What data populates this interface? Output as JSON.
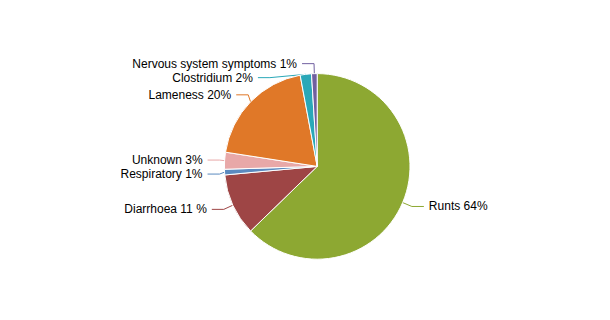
{
  "chart_data": {
    "type": "pie",
    "categories": [
      "Runts 64%",
      "Diarrhoea 11 %",
      "Respiratory 1%",
      "Unknown 3%",
      "Lameness 20%",
      "Clostridium 2%",
      "Nervous system symptoms 1%"
    ],
    "values": [
      64,
      11,
      1,
      3,
      20,
      2,
      1
    ],
    "colors": [
      "#8da832",
      "#9e4545",
      "#5b8abf",
      "#e8a8a8",
      "#e07828",
      "#2aa8b8",
      "#7060a0"
    ]
  }
}
